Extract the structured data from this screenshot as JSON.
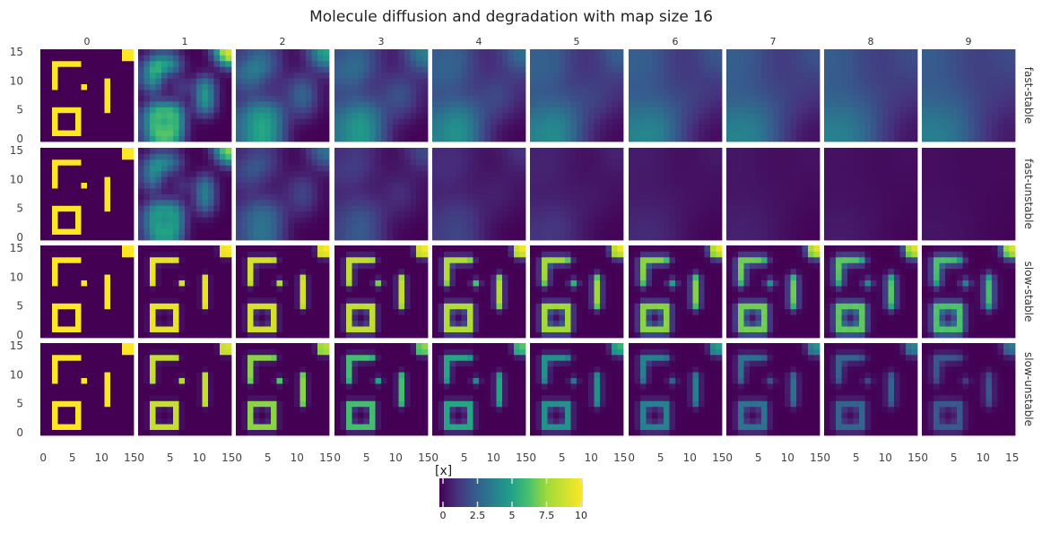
{
  "chart_data": {
    "type": "heatmap",
    "title": "Molecule diffusion and degradation with map size 16",
    "map_size": 16,
    "facet_columns": [
      "0",
      "1",
      "2",
      "3",
      "4",
      "5",
      "6",
      "7",
      "8",
      "9"
    ],
    "facet_rows": [
      "fast-stable",
      "fast-unstable",
      "slow-stable",
      "slow-unstable"
    ],
    "x_ticks": [
      "0",
      "5",
      "10",
      "15"
    ],
    "y_ticks": [
      "0",
      "5",
      "10",
      "15"
    ],
    "x_range": [
      0,
      15
    ],
    "y_range": [
      0,
      15
    ],
    "colorbar": {
      "label": "[x]",
      "ticks": [
        "0",
        "2.5",
        "5",
        "7.5",
        "10"
      ],
      "range": [
        0,
        10
      ],
      "colormap": "viridis"
    },
    "initial_pattern": {
      "value": 10,
      "shapes": [
        "L-shape top-left (x 2-6, y 9-13)",
        "dot (x 7, y 9)",
        "vertical bar (x 11, y 5-10)",
        "square ring (x 2-6, y 1-5)",
        "corner block (x 14-15, y 14-15)"
      ]
    },
    "dynamics": {
      "fast": "rapid diffusion, pattern blurs into diffuse blobs within 1-2 steps",
      "slow": "little diffusion, pattern persists",
      "stable": "no degradation",
      "unstable": "concentration decays over steps"
    },
    "grid": false,
    "legend": "colorbar bottom-center"
  }
}
